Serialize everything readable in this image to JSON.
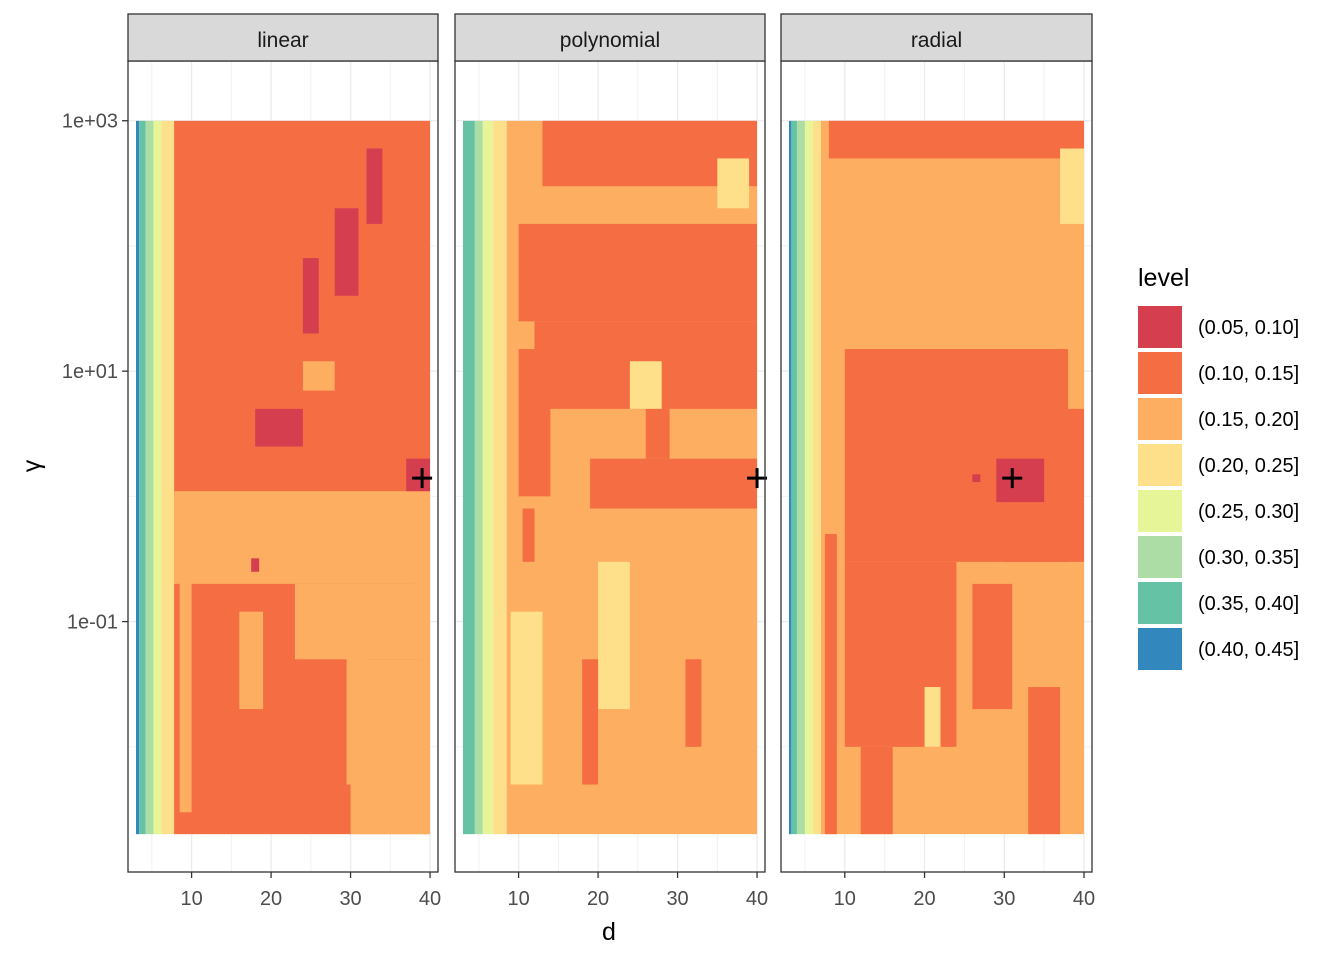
{
  "chart_data": {
    "type": "heatmap",
    "title": "",
    "xlabel": "d",
    "ylabel": "γ",
    "x_ticks": [
      10,
      20,
      30,
      40
    ],
    "y_ticks": [
      {
        "value": 0.1,
        "label": "1e-01"
      },
      {
        "value": 10,
        "label": "1e+01"
      },
      {
        "value": 1000,
        "label": "1e+03"
      }
    ],
    "y_scale": "log10",
    "xlim": [
      2,
      41
    ],
    "ylim": [
      0.001,
      3000
    ],
    "data_xrange": [
      3,
      40
    ],
    "data_yrange": [
      0.002,
      1000
    ],
    "grid": true,
    "legend": {
      "title": "level",
      "position": "right",
      "bins": [
        {
          "label": "(0.05, 0.10]",
          "color": "#d53e4f"
        },
        {
          "label": "(0.10, 0.15]",
          "color": "#f46d43"
        },
        {
          "label": "(0.15, 0.20]",
          "color": "#fdae61"
        },
        {
          "label": "(0.20, 0.25]",
          "color": "#fee08b"
        },
        {
          "label": "(0.25, 0.30]",
          "color": "#e6f598"
        },
        {
          "label": "(0.30, 0.35]",
          "color": "#abdda4"
        },
        {
          "label": "(0.35, 0.40]",
          "color": "#66c2a5"
        },
        {
          "label": "(0.40, 0.45]",
          "color": "#3288bd"
        }
      ]
    },
    "panels": [
      {
        "name": "linear",
        "optimum": {
          "d": 39,
          "gamma": 1.4
        },
        "bands": [
          {
            "bin": 7,
            "d": [
              3,
              3.4
            ],
            "gamma": [
              0.002,
              1000
            ]
          },
          {
            "bin": 6,
            "d": [
              3.4,
              4.2
            ],
            "gamma": [
              0.002,
              1000
            ]
          },
          {
            "bin": 5,
            "d": [
              4.2,
              5.2
            ],
            "gamma": [
              0.002,
              1000
            ]
          },
          {
            "bin": 4,
            "d": [
              5.2,
              6.2
            ],
            "gamma": [
              0.002,
              1000
            ]
          },
          {
            "bin": 3,
            "d": [
              6.2,
              7.8
            ],
            "gamma": [
              0.002,
              1000
            ]
          },
          {
            "bin": 1,
            "d": [
              7.8,
              40
            ],
            "gamma": [
              0.002,
              1000
            ]
          }
        ],
        "regions": [
          {
            "bin": 2,
            "d": [
              7.8,
              40
            ],
            "gamma": [
              0.2,
              1.1
            ]
          },
          {
            "bin": 2,
            "d": [
              23,
              40
            ],
            "gamma": [
              0.05,
              0.2
            ]
          },
          {
            "bin": 2,
            "d": [
              30,
              40
            ],
            "gamma": [
              0.002,
              0.05
            ]
          },
          {
            "bin": 2,
            "d": [
              16,
              19
            ],
            "gamma": [
              0.02,
              0.12
            ]
          },
          {
            "bin": 2,
            "d": [
              8.5,
              10
            ],
            "gamma": [
              0.003,
              0.3
            ]
          },
          {
            "bin": 2,
            "d": [
              10,
              11
            ],
            "gamma": [
              0.001,
              0.002
            ]
          },
          {
            "bin": 2,
            "d": [
              38,
              40
            ],
            "gamma": [
              0.05,
              1.0
            ]
          },
          {
            "bin": 2,
            "d": [
              29.5,
              32
            ],
            "gamma": [
              0.005,
              0.15
            ]
          },
          {
            "bin": 2,
            "d": [
              24,
              28
            ],
            "gamma": [
              7,
              12
            ]
          },
          {
            "bin": 0,
            "d": [
              28,
              31
            ],
            "gamma": [
              40,
              200
            ]
          },
          {
            "bin": 0,
            "d": [
              32,
              34
            ],
            "gamma": [
              150,
              600
            ]
          },
          {
            "bin": 0,
            "d": [
              24,
              26
            ],
            "gamma": [
              20,
              80
            ]
          },
          {
            "bin": 0,
            "d": [
              18,
              24
            ],
            "gamma": [
              2.5,
              5
            ]
          },
          {
            "bin": 0,
            "d": [
              37,
              40
            ],
            "gamma": [
              1.1,
              2
            ]
          },
          {
            "bin": 0,
            "d": [
              17.5,
              18.5
            ],
            "gamma": [
              0.25,
              0.32
            ]
          }
        ]
      },
      {
        "name": "polynomial",
        "optimum": {
          "d": 40,
          "gamma": 1.4
        },
        "bands": [
          {
            "bin": 6,
            "d": [
              3,
              4.5
            ],
            "gamma": [
              0.002,
              1000
            ]
          },
          {
            "bin": 5,
            "d": [
              4.5,
              5.5
            ],
            "gamma": [
              0.002,
              1000
            ]
          },
          {
            "bin": 4,
            "d": [
              5.5,
              6.8
            ],
            "gamma": [
              0.002,
              1000
            ]
          },
          {
            "bin": 3,
            "d": [
              6.8,
              8.5
            ],
            "gamma": [
              0.002,
              1000
            ]
          },
          {
            "bin": 2,
            "d": [
              8.5,
              40
            ],
            "gamma": [
              0.002,
              1000
            ]
          }
        ],
        "regions": [
          {
            "bin": 1,
            "d": [
              13,
              40
            ],
            "gamma": [
              300,
              1000
            ]
          },
          {
            "bin": 1,
            "d": [
              10,
              40
            ],
            "gamma": [
              25,
              150
            ]
          },
          {
            "bin": 1,
            "d": [
              12,
              40
            ],
            "gamma": [
              5,
              25
            ]
          },
          {
            "bin": 1,
            "d": [
              10,
              14
            ],
            "gamma": [
              1,
              15
            ]
          },
          {
            "bin": 1,
            "d": [
              19,
              40
            ],
            "gamma": [
              0.8,
              2
            ]
          },
          {
            "bin": 1,
            "d": [
              26,
              29
            ],
            "gamma": [
              2,
              8
            ]
          },
          {
            "bin": 3,
            "d": [
              9,
              13
            ],
            "gamma": [
              0.005,
              0.12
            ]
          },
          {
            "bin": 3,
            "d": [
              20,
              24
            ],
            "gamma": [
              0.02,
              0.3
            ]
          },
          {
            "bin": 3,
            "d": [
              24,
              28
            ],
            "gamma": [
              5,
              12
            ]
          },
          {
            "bin": 3,
            "d": [
              35,
              39
            ],
            "gamma": [
              200,
              500
            ]
          },
          {
            "bin": 1,
            "d": [
              18,
              20
            ],
            "gamma": [
              0.005,
              0.05
            ]
          },
          {
            "bin": 1,
            "d": [
              31,
              33
            ],
            "gamma": [
              0.01,
              0.05
            ]
          },
          {
            "bin": 1,
            "d": [
              10.5,
              12
            ],
            "gamma": [
              0.3,
              0.8
            ]
          }
        ]
      },
      {
        "name": "radial",
        "optimum": {
          "d": 31,
          "gamma": 1.4
        },
        "bands": [
          {
            "bin": 7,
            "d": [
              3,
              3.3
            ],
            "gamma": [
              0.002,
              1000
            ]
          },
          {
            "bin": 6,
            "d": [
              3.3,
              4
            ],
            "gamma": [
              0.002,
              1000
            ]
          },
          {
            "bin": 5,
            "d": [
              4,
              5
            ],
            "gamma": [
              0.002,
              1000
            ]
          },
          {
            "bin": 4,
            "d": [
              5,
              6
            ],
            "gamma": [
              0.002,
              1000
            ]
          },
          {
            "bin": 3,
            "d": [
              6,
              7
            ],
            "gamma": [
              0.002,
              1000
            ]
          },
          {
            "bin": 2,
            "d": [
              7,
              40
            ],
            "gamma": [
              0.002,
              1000
            ]
          }
        ],
        "regions": [
          {
            "bin": 1,
            "d": [
              8,
              40
            ],
            "gamma": [
              500,
              1000
            ]
          },
          {
            "bin": 1,
            "d": [
              10,
              38
            ],
            "gamma": [
              0.3,
              15
            ]
          },
          {
            "bin": 1,
            "d": [
              30,
              40
            ],
            "gamma": [
              0.3,
              5
            ]
          },
          {
            "bin": 1,
            "d": [
              10,
              24
            ],
            "gamma": [
              0.01,
              0.3
            ]
          },
          {
            "bin": 1,
            "d": [
              12,
              16
            ],
            "gamma": [
              0.002,
              0.01
            ]
          },
          {
            "bin": 1,
            "d": [
              26,
              31
            ],
            "gamma": [
              0.02,
              0.2
            ]
          },
          {
            "bin": 1,
            "d": [
              33,
              37
            ],
            "gamma": [
              0.002,
              0.03
            ]
          },
          {
            "bin": 1,
            "d": [
              7.5,
              9
            ],
            "gamma": [
              0.002,
              0.5
            ]
          },
          {
            "bin": 3,
            "d": [
              37,
              40
            ],
            "gamma": [
              150,
              600
            ]
          },
          {
            "bin": 3,
            "d": [
              20,
              22
            ],
            "gamma": [
              0.01,
              0.03
            ]
          },
          {
            "bin": 0,
            "d": [
              29,
              35
            ],
            "gamma": [
              0.9,
              2
            ]
          },
          {
            "bin": 0,
            "d": [
              26,
              27
            ],
            "gamma": [
              1.3,
              1.5
            ]
          }
        ]
      }
    ]
  }
}
